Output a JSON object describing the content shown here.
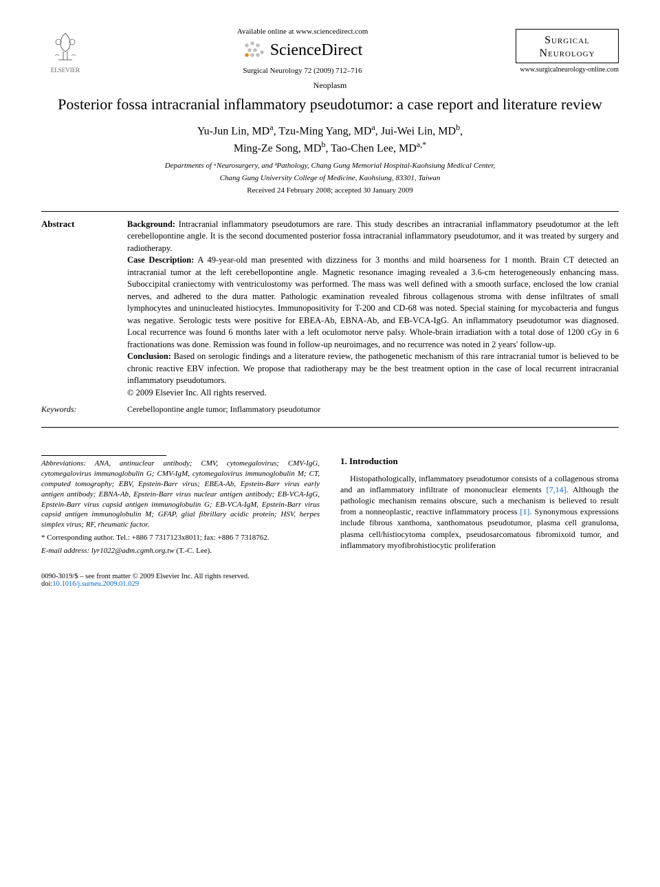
{
  "header": {
    "elsevier_label": "ELSEVIER",
    "available_online": "Available online at www.sciencedirect.com",
    "sciencedirect": "ScienceDirect",
    "journal_ref": "Surgical Neurology 72 (2009) 712–716",
    "journal_name_line1": "Surgical",
    "journal_name_line2": "Neurology",
    "journal_url": "www.surgicalneurology-online.com",
    "sd_orange": "#f5821f",
    "sd_gray": "#bfbfbf"
  },
  "article": {
    "section": "Neoplasm",
    "title": "Posterior fossa intracranial inflammatory pseudotumor: a case report and literature review",
    "authors_html": "Yu-Jun Lin, MD<sup>a</sup>, Tzu-Ming Yang, MD<sup>a</sup>, Jui-Wei Lin, MD<sup>b</sup>,<br>Ming-Ze Song, MD<sup>b</sup>, Tao-Chen Lee, MD<sup>a,*</sup>",
    "affiliation_line1": "Departments of ᵃNeurosurgery, and ᵇPathology, Chang Gung Memorial Hospital-Kaohsiung Medical Center,",
    "affiliation_line2": "Chang Gung University College of Medicine, Kaohsiung, 83301, Taiwan",
    "dates": "Received 24 February 2008; accepted 30 January 2009"
  },
  "abstract": {
    "label": "Abstract",
    "background_head": "Background:",
    "background": " Intracranial inflammatory pseudotumors are rare. This study describes an intracranial inflammatory pseudotumor at the left cerebellopontine angle. It is the second documented posterior fossa intracranial inflammatory pseudotumor, and it was treated by surgery and radiotherapy.",
    "case_head": "Case Description:",
    "case": " A 49-year-old man presented with dizziness for 3 months and mild hoarseness for 1 month. Brain CT detected an intracranial tumor at the left cerebellopontine angle. Magnetic resonance imaging revealed a 3.6-cm heterogeneously enhancing mass. Suboccipital craniectomy with ventriculostomy was performed. The mass was well defined with a smooth surface, enclosed the low cranial nerves, and adhered to the dura matter. Pathologic examination revealed fibrous collagenous stroma with dense infiltrates of small lymphocytes and uninucleated histiocytes. Immunopositivity for T-200 and CD-68 was noted. Special staining for mycobacteria and fungus was negative. Serologic tests were positive for EBEA-Ab, EBNA-Ab, and EB-VCA-IgG. An inflammatory pseudotumor was diagnosed. Local recurrence was found 6 months later with a left oculomotor nerve palsy. Whole-brain irradiation with a total dose of 1200 cGy in 6 fractionations was done. Remission was found in follow-up neuroimages, and no recurrence was noted in 2 years' follow-up.",
    "conclusion_head": "Conclusion:",
    "conclusion": " Based on serologic findings and a literature review, the pathogenetic mechanism of this rare intracranial tumor is believed to be chronic reactive EBV infection. We propose that radiotherapy may be the best treatment option in the case of local recurrent intracranial inflammatory pseudotumors.",
    "copyright": "© 2009 Elsevier Inc. All rights reserved."
  },
  "keywords": {
    "label": "Keywords:",
    "text": "Cerebellopontine angle tumor; Inflammatory pseudotumor"
  },
  "abbreviations": {
    "label": "Abbreviations:",
    "text": " ANA, antinuclear antibody; CMV, cytomegalovirus; CMV-IgG, cytomegalovirus immunoglobulin G; CMV-IgM, cytomegalovirus immunoglobulin M; CT, computed tomography; EBV, Epstein-Barr virus; EBEA-Ab, Epstein-Barr virus early antigen antibody; EBNA-Ab, Epstein-Barr virus nuclear antigen antibody; EB-VCA-IgG, Epstein-Barr virus capsid antigen immunoglobulin G; EB-VCA-IgM, Epstein-Barr virus capsid antigen immunoglobulin M; GFAP, glial fibrillary acidic protein; HSV, herpes simplex virus; RF, rheumatic factor."
  },
  "corresponding": {
    "text": "* Corresponding author. Tel.: +886 7 7317123x8011; fax: +886 7 7318762.",
    "email_label": "E-mail address:",
    "email": " lyr1022@adm.cgmh.org.tw ",
    "email_name": "(T.-C. Lee)."
  },
  "intro": {
    "heading": "1. Introduction",
    "body_pre": "Histopathologically, inflammatory pseudotumor consists of a collagenous stroma and an inflammatory infiltrate of mononuclear elements ",
    "cite1": "[7,14]",
    "body_mid": ". Although the pathologic mechanism remains obscure, such a mechanism is believed to result from a nonneoplastic, reactive inflammatory process ",
    "cite2": "[1]",
    "body_post": ". Synonymous expressions include fibrous xanthoma, xanthomatous pseudotumor, plasma cell granuloma, plasma cell/histiocytoma complex, pseudosarcomatous fibromixoid tumor, and inflammatory myofibrohistiocytic proliferation"
  },
  "footer": {
    "left": "0090-3019/$ – see front matter © 2009 Elsevier Inc. All rights reserved.",
    "doi_label": "doi:",
    "doi": "10.1016/j.surneu.2009.01.029"
  },
  "colors": {
    "link": "#0066cc",
    "text": "#000000",
    "bg": "#ffffff"
  },
  "typography": {
    "title_fontsize_pt": 17,
    "authors_fontsize_pt": 12,
    "body_fontsize_pt": 9.5,
    "affiliation_fontsize_pt": 8.5
  }
}
